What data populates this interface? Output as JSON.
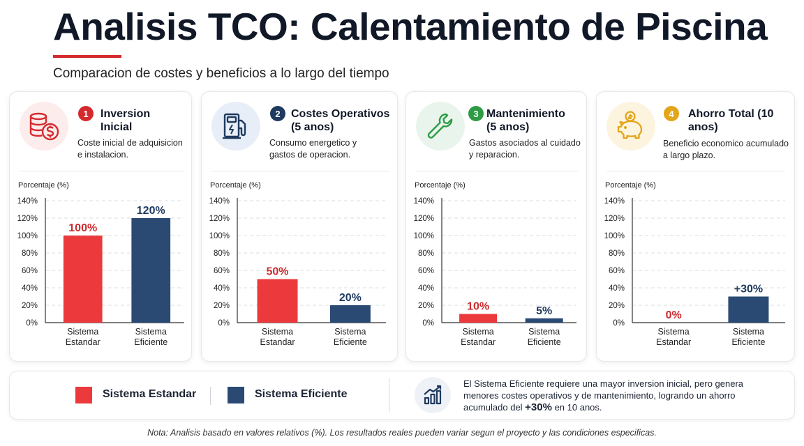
{
  "header": {
    "title": "Analisis TCO: Calentamiento de Piscina",
    "subtitle": "Comparacion de costes y beneficios a lo largo del tiempo"
  },
  "colors": {
    "estandar": "#ec3a3c",
    "eficiente": "#2a4a74",
    "label_estandar": "#cc2b2e",
    "label_eficiente": "#1f3a5f"
  },
  "cards": [
    {
      "number": "1",
      "title": "Inversion Inicial",
      "desc": "Coste inicial de adquisicion e instalacion.",
      "icon": "coins-dollar-icon",
      "badge_color": "#d42a2e"
    },
    {
      "number": "2",
      "title": "Costes Operativos (5 anos)",
      "desc": "Consumo energetico y gastos de operacion.",
      "icon": "fuel-pump-icon",
      "badge_color": "#1f3a5f"
    },
    {
      "number": "3",
      "title": "Mantenimiento (5 anos)",
      "desc": "Gastos asociados al cuidado y reparacion.",
      "icon": "wrench-icon",
      "badge_color": "#2e9b45"
    },
    {
      "number": "4",
      "title": "Ahorro Total (10 anos)",
      "desc": "Beneficio economico acumulado a largo plazo.",
      "icon": "piggy-bank-icon",
      "badge_color": "#e3a51a"
    }
  ],
  "chart_data": [
    {
      "type": "bar",
      "ylabel": "Porcentaje (%)",
      "ylim": [
        0,
        140
      ],
      "yticks": [
        0,
        20,
        40,
        60,
        80,
        100,
        120,
        140
      ],
      "categories": [
        "Sistema Estandar",
        "Sistema Eficiente"
      ],
      "values": [
        100,
        120
      ],
      "data_labels": [
        "100%",
        "120%"
      ]
    },
    {
      "type": "bar",
      "ylabel": "Porcentaje (%)",
      "ylim": [
        0,
        140
      ],
      "yticks": [
        0,
        20,
        40,
        60,
        80,
        100,
        120,
        140
      ],
      "categories": [
        "Sistema Estandar",
        "Sistema Eficiente"
      ],
      "values": [
        50,
        20
      ],
      "data_labels": [
        "50%",
        "20%"
      ]
    },
    {
      "type": "bar",
      "ylabel": "Porcentaje (%)",
      "ylim": [
        0,
        140
      ],
      "yticks": [
        0,
        20,
        40,
        60,
        80,
        100,
        120,
        140
      ],
      "categories": [
        "Sistema Estandar",
        "Sistema Eficiente"
      ],
      "values": [
        10,
        5
      ],
      "data_labels": [
        "10%",
        "5%"
      ]
    },
    {
      "type": "bar",
      "ylabel": "Porcentaje (%)",
      "ylim": [
        0,
        140
      ],
      "yticks": [
        0,
        20,
        40,
        60,
        80,
        100,
        120,
        140
      ],
      "categories": [
        "Sistema Estandar",
        "Sistema Eficiente"
      ],
      "values": [
        0,
        30
      ],
      "data_labels": [
        "0%",
        "+30%"
      ]
    }
  ],
  "legend": {
    "estandar": "Sistema Estandar",
    "eficiente": "Sistema Eficiente"
  },
  "summary": {
    "icon": "chart-growth-icon",
    "text_before": "El Sistema Eficiente requiere una mayor inversion inicial, pero genera menores costes operativos y de mantenimiento, logrando un ahorro acumulado del ",
    "highlight": "+30%",
    "text_after": " en 10 anos."
  },
  "note": "Nota: Analisis basado en valores relativos (%). Los resultados reales pueden variar segun el proyecto y las condiciones especificas."
}
